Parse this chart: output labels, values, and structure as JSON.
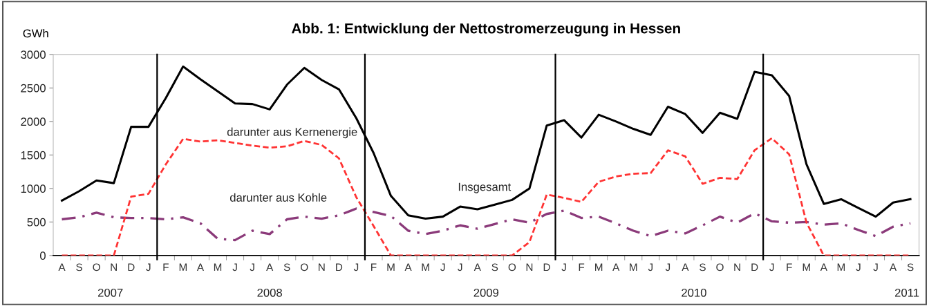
{
  "chart_data": {
    "type": "line",
    "title": "Abb. 1: Entwicklung der Nettostromerzeugung in Hessen",
    "ylabel": "GWh",
    "categories": [
      "A",
      "S",
      "O",
      "N",
      "D",
      "J",
      "F",
      "M",
      "A",
      "M",
      "J",
      "J",
      "A",
      "S",
      "O",
      "N",
      "D",
      "J",
      "F",
      "M",
      "A",
      "M",
      "J",
      "J",
      "A",
      "S",
      "O",
      "N",
      "D",
      "J",
      "F",
      "M",
      "A",
      "M",
      "J",
      "J",
      "A",
      "S",
      "O",
      "N",
      "D",
      "J",
      "F",
      "M",
      "A",
      "M",
      "J",
      "J",
      "A",
      "S"
    ],
    "series": [
      {
        "name": "Insgesamt",
        "color": "#000000",
        "line_style": "solid",
        "values": [
          820,
          960,
          1120,
          1080,
          1920,
          1920,
          2350,
          2820,
          2630,
          2450,
          2270,
          2260,
          2180,
          2550,
          2800,
          2620,
          2480,
          2050,
          1530,
          890,
          600,
          550,
          580,
          730,
          690,
          760,
          830,
          1000,
          1940,
          2020,
          1760,
          2100,
          2000,
          1890,
          1800,
          2220,
          2110,
          1830,
          2130,
          2040,
          2740,
          2690,
          2380,
          1360,
          770,
          840,
          710,
          580,
          790,
          840
        ]
      },
      {
        "name": "darunter aus Kernenergie",
        "color": "#ff3333",
        "line_style": "dashed",
        "values": [
          0,
          0,
          0,
          0,
          880,
          920,
          1360,
          1740,
          1700,
          1720,
          1680,
          1640,
          1610,
          1630,
          1710,
          1650,
          1450,
          870,
          440,
          0,
          0,
          0,
          0,
          0,
          0,
          0,
          0,
          200,
          910,
          860,
          800,
          1100,
          1180,
          1220,
          1230,
          1570,
          1480,
          1070,
          1160,
          1140,
          1570,
          1750,
          1510,
          490,
          0,
          0,
          0,
          0,
          0,
          0
        ]
      },
      {
        "name": "darunter aus Kohle",
        "color": "#8b3a7a",
        "line_style": "dashdot",
        "values": [
          540,
          570,
          640,
          570,
          560,
          560,
          540,
          570,
          480,
          250,
          230,
          370,
          320,
          540,
          580,
          550,
          600,
          700,
          650,
          590,
          370,
          320,
          370,
          450,
          400,
          470,
          540,
          490,
          620,
          670,
          560,
          580,
          480,
          370,
          290,
          370,
          330,
          450,
          580,
          490,
          630,
          510,
          490,
          500,
          460,
          480,
          380,
          290,
          430,
          480
        ]
      }
    ],
    "ylim": [
      0,
      3000
    ],
    "yticks": [
      0,
      500,
      1000,
      1500,
      2000,
      2500,
      3000
    ],
    "annotations": [
      "2007",
      "2008",
      "2009",
      "2010",
      "2011"
    ],
    "grid": false,
    "legend": false,
    "marker": "none"
  }
}
